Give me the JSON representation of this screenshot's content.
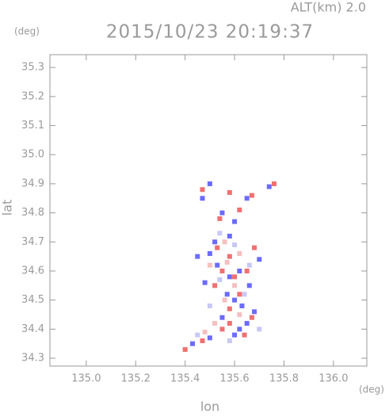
{
  "chart_data": {
    "type": "scatter",
    "title": "2015/10/23 20:19:37",
    "subtitle": "ALT(km) 2.0",
    "x_label": "lon",
    "x_unit": "(deg)",
    "y_label": "lat",
    "y_unit": "(deg)",
    "xlim": [
      134.853,
      136.135
    ],
    "ylim": [
      34.273,
      35.344
    ],
    "xticks": [
      {
        "value": 135,
        "label": "135.0"
      },
      135.2,
      135.4,
      135.6,
      135.8,
      {
        "value": 136,
        "label": "136.0"
      }
    ],
    "yticks": [
      34.3,
      34.4,
      34.5,
      34.6,
      34.7,
      34.8,
      34.9,
      {
        "value": 35,
        "label": "35.0"
      },
      35.1,
      35.2,
      35.3
    ],
    "grid": false,
    "series": [
      {
        "color": "#6b6bff",
        "x": [
          135.5,
          135.47,
          135.55,
          135.6,
          135.65,
          135.74,
          135.5,
          135.45,
          135.53,
          135.62,
          135.7,
          135.48,
          135.57,
          135.63,
          135.6,
          135.55,
          135.65,
          135.62,
          135.6,
          135.5,
          135.43,
          135.68,
          135.58,
          135.66,
          135.52,
          135.58
        ],
        "values": [
          34.9,
          34.85,
          34.8,
          34.77,
          34.85,
          34.89,
          34.66,
          34.65,
          34.62,
          34.6,
          34.64,
          34.56,
          34.52,
          34.48,
          34.5,
          34.44,
          34.42,
          34.4,
          34.38,
          34.37,
          34.35,
          34.46,
          34.58,
          34.55,
          34.7,
          34.72
        ]
      },
      {
        "color": "#f07070",
        "x": [
          135.47,
          135.58,
          135.67,
          135.76,
          135.54,
          135.62,
          135.58,
          135.55,
          135.6,
          135.65,
          135.52,
          135.62,
          135.58,
          135.67,
          135.58,
          135.55,
          135.47,
          135.4,
          135.64,
          135.53,
          135.68
        ],
        "values": [
          34.88,
          34.87,
          34.86,
          34.9,
          34.78,
          34.81,
          34.65,
          34.6,
          34.58,
          34.6,
          34.55,
          34.52,
          34.47,
          34.44,
          34.42,
          34.4,
          34.36,
          34.33,
          34.38,
          34.68,
          34.68
        ]
      },
      {
        "color": "#f5c0c0",
        "x": [
          135.56,
          135.62,
          135.5,
          135.6,
          135.56,
          135.62,
          135.52,
          135.48,
          135.57
        ],
        "values": [
          34.7,
          34.66,
          34.62,
          34.55,
          34.5,
          34.45,
          34.42,
          34.39,
          34.63
        ]
      },
      {
        "color": "#c8c8f5",
        "x": [
          135.54,
          135.6,
          135.66,
          135.54,
          135.64,
          135.5,
          135.58,
          135.45,
          135.7
        ],
        "values": [
          34.73,
          34.69,
          34.62,
          34.57,
          34.52,
          34.48,
          34.36,
          34.38,
          34.4
        ]
      }
    ]
  }
}
